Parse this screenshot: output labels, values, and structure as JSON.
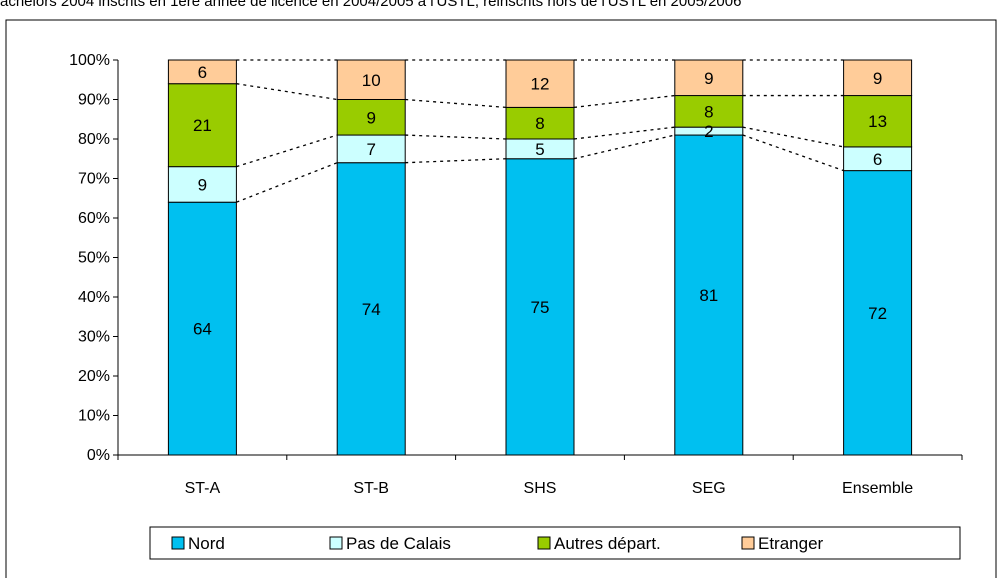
{
  "title": "achelors 2004 inscrits en 1ère année de licence en 2004/2005 à l'USTL, réinscrits hors de l'USTL en 2005/2006",
  "chart_data": {
    "type": "bar",
    "stacked": true,
    "normalized": true,
    "categories": [
      "ST-A",
      "ST-B",
      "SHS",
      "SEG",
      "Ensemble"
    ],
    "series": [
      {
        "name": "Nord",
        "color": "#00C0F0",
        "values": [
          64,
          74,
          75,
          81,
          72
        ]
      },
      {
        "name": "Pas de Calais",
        "color": "#CCFFFF",
        "values": [
          9,
          7,
          5,
          2,
          6
        ]
      },
      {
        "name": "Autres départ.",
        "color": "#99CC00",
        "values": [
          21,
          9,
          8,
          8,
          13
        ]
      },
      {
        "name": "Etranger",
        "color": "#FFCC99",
        "values": [
          6,
          10,
          12,
          9,
          9
        ]
      }
    ],
    "y_ticks": [
      "0%",
      "10%",
      "20%",
      "30%",
      "40%",
      "50%",
      "60%",
      "70%",
      "80%",
      "90%",
      "100%"
    ],
    "ylim": [
      0,
      100
    ],
    "series_lines": "dotted",
    "legend_position": "bottom",
    "grid": false
  }
}
